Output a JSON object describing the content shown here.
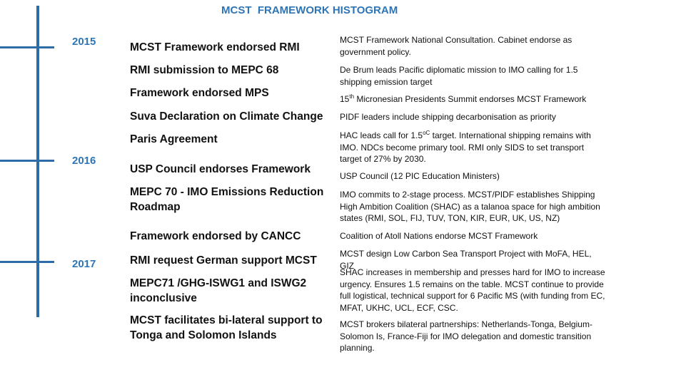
{
  "title": "MCST  FRAMEWORK HISTOGRAM",
  "timeline": {
    "years": [
      "2015",
      "2016",
      "2017"
    ]
  },
  "events": [
    {
      "title": "MCST Framework endorsed RMI",
      "desc": "MCST Framework National Consultation. Cabinet endorse as government policy."
    },
    {
      "title": "RMI submission to MEPC 68",
      "desc": "De Brum leads Pacific diplomatic mission to IMO calling for 1.5 shipping emission  target"
    },
    {
      "title": "Framework endorsed MPS",
      "desc_pre": "15",
      "desc_sup": "th",
      "desc": " Micronesian Presidents Summit endorses MCST Framework"
    },
    {
      "title": "Suva Declaration on Climate Change",
      "desc": "PIDF leaders include shipping decarbonisation  as priority"
    },
    {
      "title": "Paris Agreement",
      "desc_pre": "HAC leads call for 1.5",
      "desc_sup": "oC",
      "desc": " target. International shipping remains with IMO. NDCs become primary tool. RMI only SIDS to set transport target of 27% by 2030."
    },
    {
      "title": "USP Council endorses Framework",
      "desc": "USP Council (12 PIC Education Ministers)"
    },
    {
      "title": "MEPC 70 - IMO Emissions Reduction Roadmap",
      "desc": "IMO commits to 2-stage process. MCST/PIDF establishes Shipping High Ambition Coalition (SHAC) as a talanoa space for high ambition states (RMI, SOL, FIJ, TUV, TON, KIR, EUR, UK, US, NZ)"
    },
    {
      "title": "Framework endorsed by CANCC",
      "desc": "Coalition of Atoll Nations endorse MCST Framework"
    },
    {
      "title": "RMI request German support MCST",
      "desc": "MCST design Low Carbon Sea Transport Project with MoFA, HEL, GIZ"
    },
    {
      "title": "MEPC71 /GHG-ISWG1 and ISWG2 inconclusive",
      "desc": "SHAC increases in membership and  presses hard for IMO to increase urgency.  Ensures 1.5 remains on the table.  MCST continue to provide full logistical, technical support for 6 Pacific MS (with funding from EC, MFAT, UKHC, UCL, ECF, CSC."
    },
    {
      "title": "MCST facilitates bi-lateral support to Tonga and Solomon Islands",
      "desc": "MCST brokers bilateral partnerships: Netherlands-Tonga, Belgium-Solomon Is, France-Fiji for IMO delegation and domestic transition planning."
    }
  ]
}
